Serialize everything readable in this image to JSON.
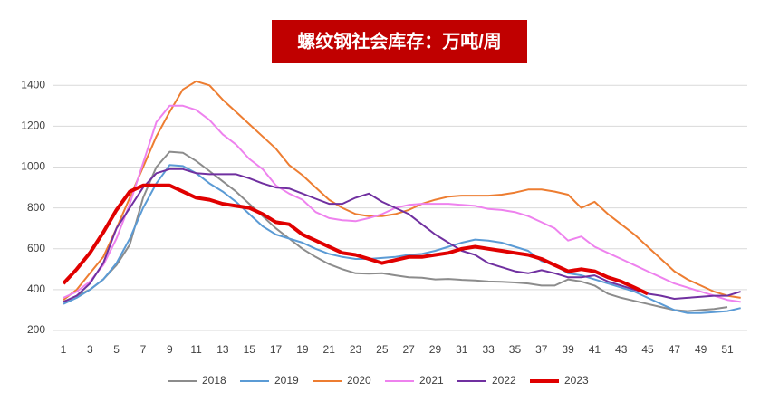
{
  "chart_data": {
    "type": "line",
    "title": "螺纹钢社会库存：万吨/周",
    "x": [
      1,
      2,
      3,
      4,
      5,
      6,
      7,
      8,
      9,
      10,
      11,
      12,
      13,
      14,
      15,
      16,
      17,
      18,
      19,
      20,
      21,
      22,
      23,
      24,
      25,
      26,
      27,
      28,
      29,
      30,
      31,
      32,
      33,
      34,
      35,
      36,
      37,
      38,
      39,
      40,
      41,
      42,
      43,
      44,
      45,
      46,
      47,
      48,
      49,
      50,
      51,
      52
    ],
    "xlim": [
      1,
      52.5
    ],
    "xticks": [
      1,
      3,
      5,
      7,
      9,
      11,
      13,
      15,
      17,
      19,
      21,
      23,
      25,
      27,
      29,
      31,
      33,
      35,
      37,
      39,
      41,
      43,
      45,
      47,
      49,
      51
    ],
    "ylim": [
      200,
      1450
    ],
    "yticks": [
      200,
      400,
      600,
      800,
      1000,
      1200,
      1400
    ],
    "grid": true,
    "legend": "bottom",
    "series": [
      {
        "name": "2018",
        "color": "#8c8c8c",
        "width": 2,
        "values": [
          340,
          370,
          400,
          450,
          520,
          620,
          850,
          1000,
          1075,
          1070,
          1030,
          980,
          930,
          880,
          820,
          760,
          700,
          650,
          600,
          560,
          525,
          500,
          480,
          478,
          480,
          470,
          460,
          458,
          450,
          452,
          448,
          445,
          440,
          438,
          435,
          430,
          420,
          420,
          450,
          440,
          420,
          380,
          360,
          345,
          330,
          315,
          300,
          295,
          300,
          305,
          315,
          null
        ]
      },
      {
        "name": "2019",
        "color": "#5b9bd5",
        "width": 2,
        "values": [
          330,
          360,
          400,
          450,
          530,
          650,
          800,
          920,
          1010,
          1005,
          970,
          920,
          880,
          830,
          770,
          710,
          670,
          650,
          630,
          600,
          575,
          560,
          550,
          550,
          555,
          560,
          570,
          575,
          590,
          610,
          630,
          645,
          640,
          630,
          610,
          590,
          540,
          520,
          480,
          470,
          450,
          430,
          410,
          390,
          360,
          330,
          300,
          285,
          285,
          290,
          295,
          310
        ]
      },
      {
        "name": "2020",
        "color": "#ed7d31",
        "width": 2,
        "values": [
          350,
          400,
          480,
          560,
          700,
          850,
          1000,
          1150,
          1270,
          1380,
          1420,
          1400,
          1330,
          1270,
          1210,
          1150,
          1090,
          1010,
          960,
          900,
          840,
          800,
          770,
          760,
          760,
          770,
          790,
          820,
          840,
          855,
          860,
          860,
          860,
          865,
          875,
          890,
          890,
          880,
          865,
          800,
          830,
          770,
          720,
          670,
          610,
          550,
          490,
          450,
          420,
          390,
          370,
          360
        ]
      },
      {
        "name": "2021",
        "color": "#ee82ee",
        "width": 2,
        "values": [
          360,
          390,
          440,
          520,
          650,
          820,
          1020,
          1220,
          1300,
          1300,
          1280,
          1230,
          1160,
          1110,
          1040,
          990,
          910,
          870,
          840,
          780,
          750,
          740,
          735,
          750,
          770,
          800,
          815,
          820,
          820,
          820,
          815,
          810,
          795,
          790,
          780,
          760,
          730,
          700,
          640,
          660,
          610,
          580,
          550,
          520,
          490,
          460,
          430,
          410,
          390,
          370,
          350,
          340
        ]
      },
      {
        "name": "2022",
        "color": "#7030a0",
        "width": 2,
        "values": [
          340,
          370,
          430,
          530,
          700,
          800,
          900,
          970,
          990,
          990,
          970,
          965,
          965,
          965,
          945,
          920,
          900,
          895,
          870,
          845,
          820,
          820,
          850,
          870,
          830,
          800,
          770,
          720,
          670,
          630,
          590,
          570,
          530,
          510,
          490,
          480,
          495,
          480,
          460,
          460,
          470,
          440,
          420,
          400,
          380,
          370,
          355,
          360,
          365,
          370,
          370,
          390
        ]
      },
      {
        "name": "2023",
        "color": "#e00000",
        "width": 4,
        "values": [
          430,
          500,
          580,
          680,
          790,
          880,
          910,
          910,
          910,
          880,
          850,
          840,
          820,
          810,
          800,
          770,
          730,
          720,
          670,
          640,
          610,
          580,
          570,
          550,
          530,
          545,
          560,
          560,
          570,
          580,
          600,
          610,
          600,
          590,
          580,
          570,
          550,
          520,
          490,
          500,
          490,
          460,
          440,
          410,
          380,
          null,
          null,
          null,
          null,
          null,
          null,
          null
        ]
      }
    ]
  }
}
